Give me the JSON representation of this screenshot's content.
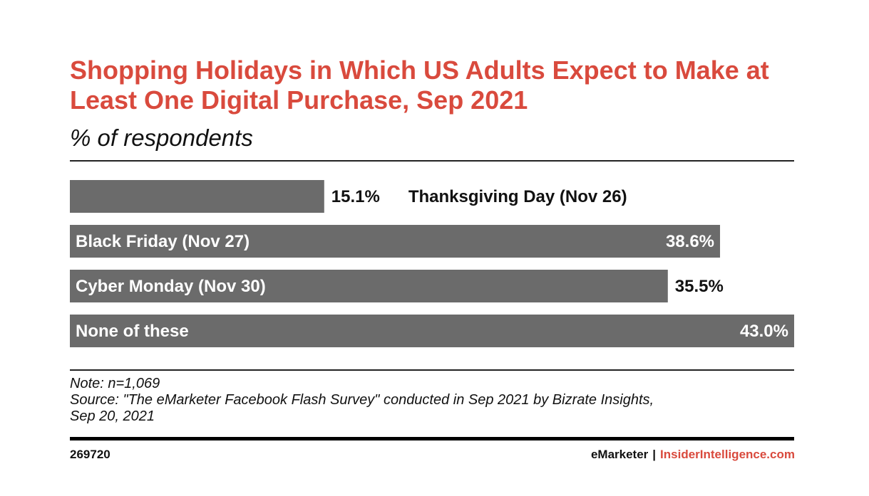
{
  "header": {
    "title": "Shopping Holidays in Which US Adults Expect to Make at Least One Digital Purchase, Sep 2021",
    "subtitle": "% of respondents"
  },
  "chart_data": {
    "type": "bar",
    "orientation": "horizontal",
    "title": "Shopping Holidays in Which US Adults Expect to Make at Least One Digital Purchase, Sep 2021",
    "subtitle": "% of respondents",
    "categories": [
      "Thanksgiving Day (Nov 26)",
      "Black Friday (Nov 27)",
      "Cyber Monday (Nov 30)",
      "None of these"
    ],
    "values": [
      15.1,
      38.6,
      35.5,
      43.0
    ],
    "value_labels": [
      "15.1%",
      "38.6%",
      "35.5%",
      "43.0%"
    ],
    "xlim": [
      0,
      43.0
    ],
    "bar_color": "#6b6b6b",
    "grid": false,
    "legend": "none"
  },
  "notes": {
    "note": "Note: n=1,069",
    "source_line1": "Source: \"The eMarketer Facebook Flash Survey\" conducted in Sep 2021 by Bizrate Insights,",
    "source_line2": "Sep 20, 2021"
  },
  "footer": {
    "chart_id": "269720",
    "brand": "eMarketer",
    "separator": "|",
    "site": "InsiderIntelligence.com"
  },
  "colors": {
    "accent": "#d94a3d",
    "bar": "#6b6b6b",
    "text": "#111111"
  }
}
